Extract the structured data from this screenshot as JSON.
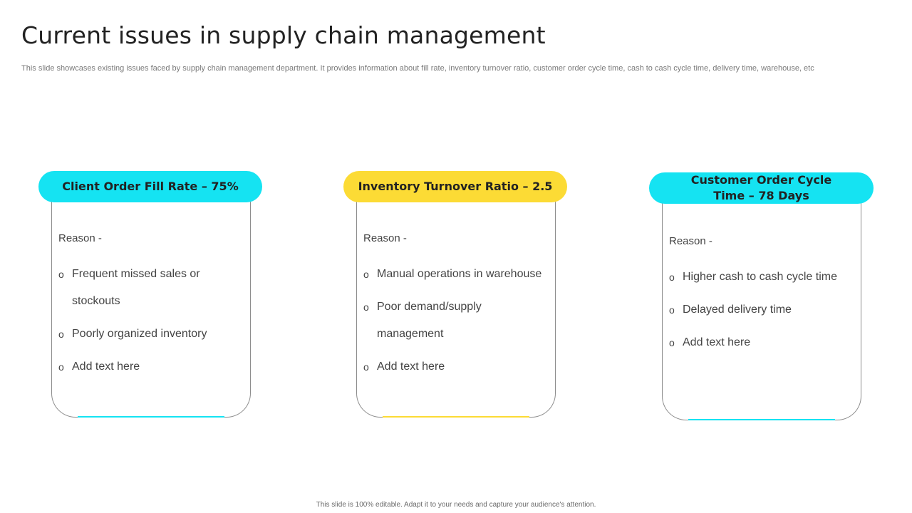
{
  "title": "Current issues in supply chain management",
  "subtitle": "This slide showcases existing issues faced by supply chain management department. It provides information about fill rate, inventory turnover ratio, customer order cycle time, cash to cash cycle time, delivery time, warehouse, etc",
  "colors": {
    "cyan": "#15e3f2",
    "yellow": "#fcdb35",
    "border": "#8c8c8c"
  },
  "bullet_marker": "o",
  "cards": [
    {
      "heading": "Client Order Fill Rate – 75%",
      "reason": "Reason -",
      "items": [
        "Frequent missed sales or stockouts",
        "Poorly organized inventory",
        "Add text here"
      ]
    },
    {
      "heading": "Inventory Turnover Ratio – 2.5",
      "reason": "Reason -",
      "items": [
        "Manual operations in warehouse",
        "Poor demand/supply management",
        "Add text here"
      ]
    },
    {
      "heading": "Customer Order Cycle Time – 78 Days",
      "reason": "Reason -",
      "items": [
        "Higher cash to cash cycle time",
        "Delayed delivery time",
        "Add text here"
      ]
    }
  ],
  "footer": "This slide is 100% editable. Adapt it to your needs and capture your audience's attention."
}
